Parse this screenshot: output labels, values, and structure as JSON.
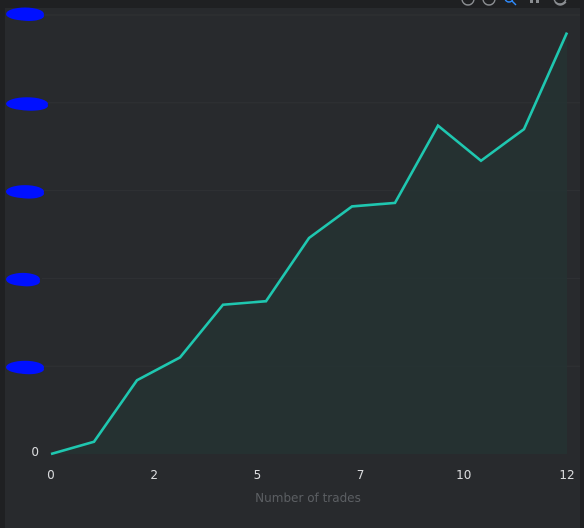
{
  "chart_data": {
    "type": "area",
    "xlabel": "Number of trades",
    "ylabel": "",
    "x": [
      0,
      1,
      2,
      3,
      4,
      5,
      6,
      7,
      8,
      9,
      10,
      11,
      12
    ],
    "values": [
      0,
      0.07,
      0.42,
      0.55,
      0.85,
      0.87,
      1.23,
      1.41,
      1.43,
      1.87,
      1.67,
      1.85,
      2.4
    ],
    "xlim": [
      0,
      12
    ],
    "ylim": [
      0,
      2.5
    ],
    "x_tick_labels": [
      "0",
      "2",
      "5",
      "7",
      "10",
      "12"
    ],
    "x_tick_values": [
      0,
      2.4,
      4.8,
      7.2,
      9.6,
      12
    ],
    "y_tick_labels": [
      "0"
    ],
    "y_tick_values": [
      0,
      0.5,
      1.0,
      1.5,
      2.0,
      2.5
    ],
    "grid": true,
    "line_color": "#1fc7b0",
    "fill_color": "#253332",
    "redacted_color": "#0010ff"
  },
  "toolbar": {
    "icons": [
      "zoom-in-icon",
      "zoom-out-icon",
      "search-icon",
      "pan-icon",
      "reset-icon"
    ]
  }
}
